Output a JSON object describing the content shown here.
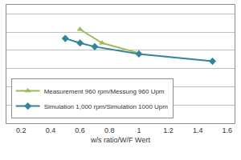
{
  "chart_data": {
    "type": "line",
    "x_label": "w/s ratio/W/F Wert",
    "series": [
      {
        "name": "Measurement 960 rpm/Messung 960 Upm",
        "color": "#9bbb59",
        "marker": "triangle-up",
        "x": [
          0.6,
          0.75,
          1.0
        ],
        "values": [
          5.15,
          4.4,
          3.85
        ]
      },
      {
        "name": "Simulation 1,000 rpm/Simulation 1000 Upm",
        "color": "#31849b",
        "marker": "diamond",
        "x": [
          0.5,
          0.6,
          0.7,
          1.0,
          1.5
        ],
        "values": [
          4.65,
          4.4,
          4.2,
          3.8,
          3.4
        ]
      }
    ],
    "xlim": [
      0.1,
      1.65
    ],
    "xticks": [
      0.2,
      0.4,
      0.6,
      0.8,
      1,
      1.2,
      1.4,
      1.6
    ],
    "ylim": [
      0,
      6.5
    ],
    "yticks": [
      0,
      1,
      2,
      3,
      4,
      5,
      6
    ],
    "tick_labels": "x",
    "grid": true,
    "legend": "lower left"
  }
}
